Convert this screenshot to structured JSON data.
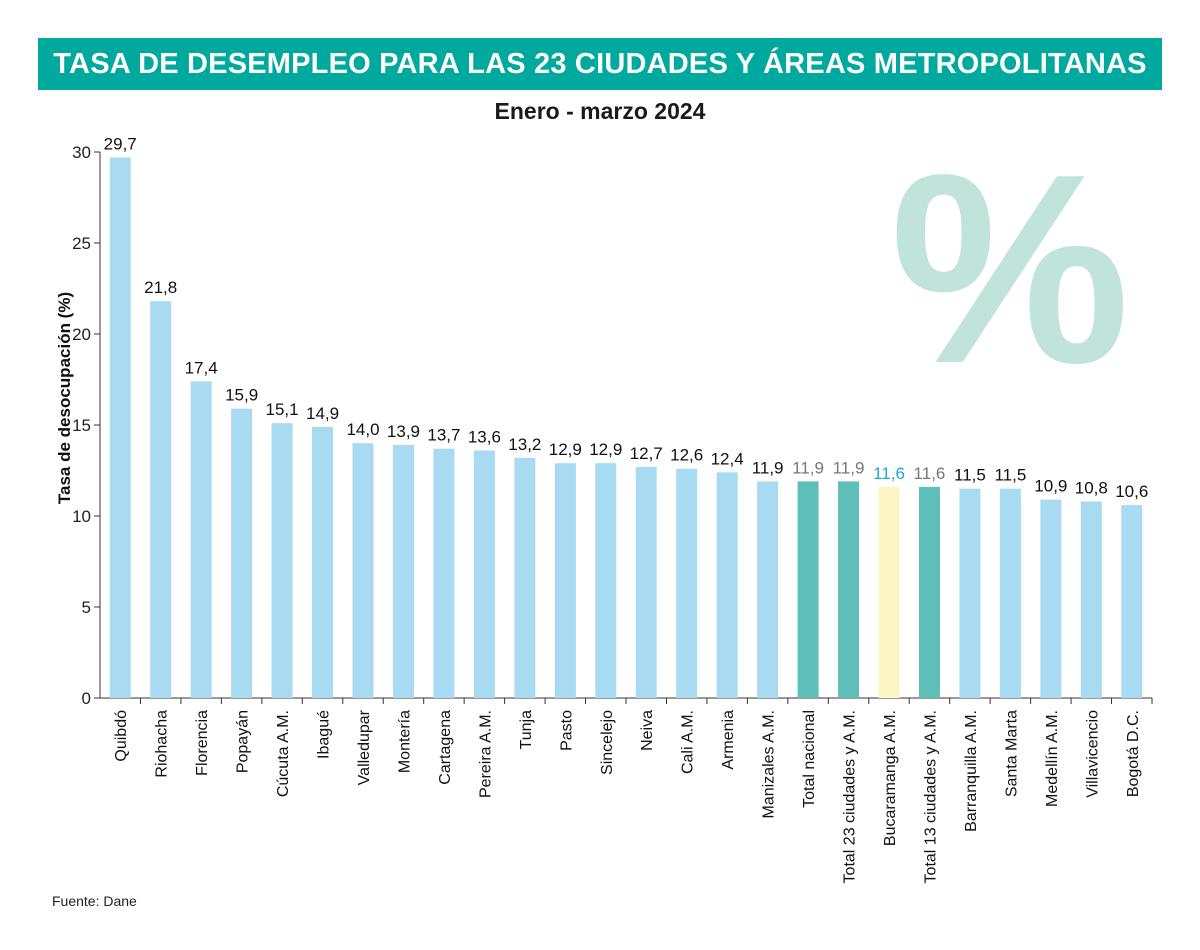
{
  "header": {
    "title": "TASA DE DESEMPLEO PARA LAS 23 CIUDADES Y ÁREAS METROPOLITANAS",
    "subtitle": "Enero - marzo 2024",
    "decoration_symbol": "%"
  },
  "footer": {
    "source": "Fuente: Dane"
  },
  "colors": {
    "banner": "#00a99d",
    "bar_city": "#a8daf1",
    "bar_total": "#5dbfb7",
    "bar_highlight": "#fdf6c4",
    "label_highlight": "#1ea7d8",
    "label_total": "#777777",
    "label_default": "#111111",
    "percent_mark": "#c0e3dc"
  },
  "chart_data": {
    "type": "bar",
    "title": "TASA DE DESEMPLEO PARA LAS 23 CIUDADES Y ÁREAS METROPOLITANAS",
    "subtitle": "Enero - marzo 2024",
    "xlabel": "",
    "ylabel": "Tasa de desocupación (%)",
    "ylim": [
      0,
      30
    ],
    "yticks": [
      "0",
      "5",
      "10",
      "15",
      "20",
      "25",
      "30"
    ],
    "grid": false,
    "categories": [
      "Quibdó",
      "Riohacha",
      "Florencia",
      "Popayán",
      "Cúcuta A.M.",
      "Ibagué",
      "Valledupar",
      "Montería",
      "Cartagena",
      "Pereira A.M.",
      "Tunja",
      "Pasto",
      "Sincelejo",
      "Neiva",
      "Cali A.M.",
      "Armenia",
      "Manizales A.M.",
      "Total nacional",
      "Total 23 ciudades y A.M.",
      "Bucaramanga A.M.",
      "Total 13 ciudades y A.M.",
      "Barranquilla A.M.",
      "Santa Marta",
      "Medellín A.M.",
      "Villavicencio",
      "Bogotá D.C."
    ],
    "values": [
      29.7,
      21.8,
      17.4,
      15.9,
      15.1,
      14.9,
      14.0,
      13.9,
      13.7,
      13.6,
      13.2,
      12.9,
      12.9,
      12.7,
      12.6,
      12.4,
      11.9,
      11.9,
      11.9,
      11.6,
      11.6,
      11.5,
      11.5,
      10.9,
      10.8,
      10.6
    ],
    "value_labels": [
      "29,7",
      "21,8",
      "17,4",
      "15,9",
      "15,1",
      "14,9",
      "14,0",
      "13,9",
      "13,7",
      "13,6",
      "13,2",
      "12,9",
      "12,9",
      "12,7",
      "12,6",
      "12,4",
      "11,9",
      "11,9",
      "11,9",
      "11,6",
      "11,6",
      "11,5",
      "11,5",
      "10,9",
      "10,8",
      "10,6"
    ],
    "bar_kind": [
      "city",
      "city",
      "city",
      "city",
      "city",
      "city",
      "city",
      "city",
      "city",
      "city",
      "city",
      "city",
      "city",
      "city",
      "city",
      "city",
      "city",
      "total",
      "total",
      "highlight",
      "total",
      "city",
      "city",
      "city",
      "city",
      "city"
    ]
  }
}
